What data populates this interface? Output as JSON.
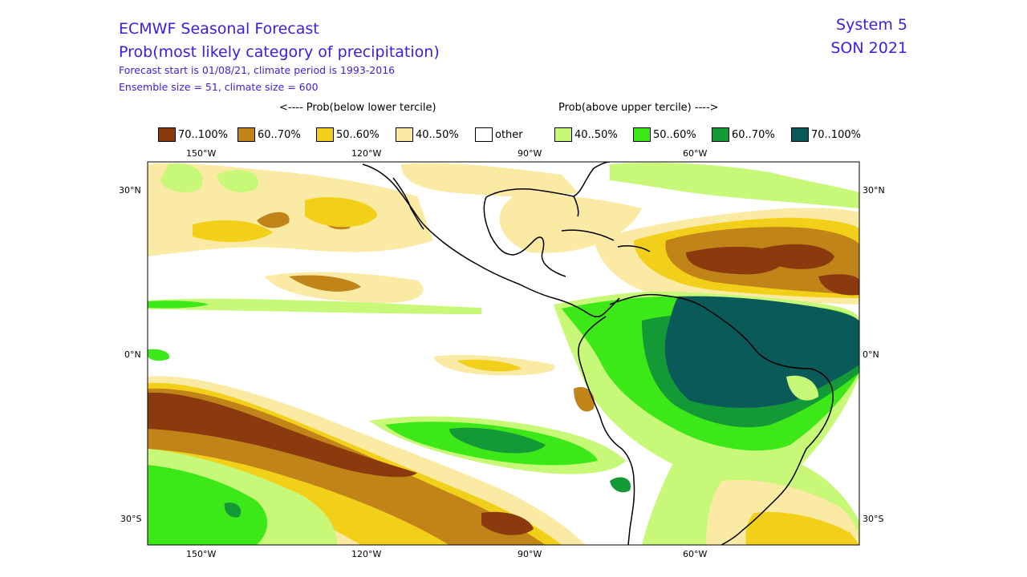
{
  "header": {
    "title": "ECMWF Seasonal Forecast",
    "subtitle": "Prob(most likely category of precipitation)",
    "forecast_start": "Forecast start is 01/08/21, climate period is 1993-2016",
    "ensemble": "Ensemble size = 51, climate size = 600",
    "system": "System 5",
    "season": "SON 2021"
  },
  "captions": {
    "below": "<---- Prob(below lower tercile)",
    "above": "Prob(above upper tercile) ---->"
  },
  "legend": [
    {
      "label": "70..100%",
      "color": "#8b3a0e"
    },
    {
      "label": "60..70%",
      "color": "#c08418"
    },
    {
      "label": "50..60%",
      "color": "#f2d019"
    },
    {
      "label": "40..50%",
      "color": "#fbeaa3"
    },
    {
      "label": "other",
      "color": "#ffffff"
    },
    {
      "label": "40..50%",
      "color": "#c8f878"
    },
    {
      "label": "50..60%",
      "color": "#3de818"
    },
    {
      "label": "60..70%",
      "color": "#139a37"
    },
    {
      "label": "70..100%",
      "color": "#0b5a5a"
    }
  ],
  "axes": {
    "top_ticks": [
      "150°W",
      "120°W",
      "90°W",
      "60°W"
    ],
    "bottom_ticks": [
      "150°W",
      "120°W",
      "90°W",
      "60°W"
    ],
    "left_ticks": [
      "30°N",
      "0°N",
      "30°S"
    ],
    "right_ticks": [
      "30°N",
      "0°N",
      "30°S"
    ]
  }
}
